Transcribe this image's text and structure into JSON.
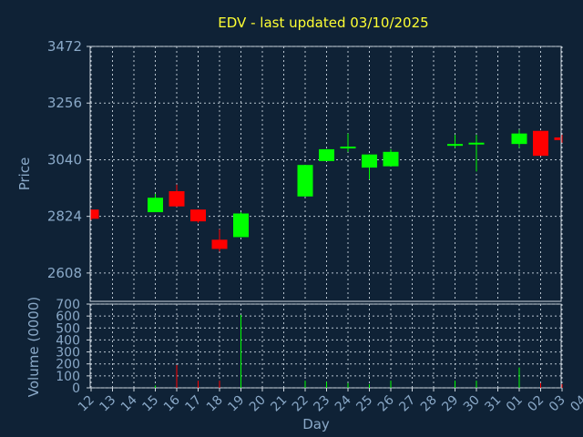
{
  "chart_data": {
    "type": "candlestick",
    "title": "EDV - last updated 03/10/2025",
    "ylabel": "Price",
    "volume_ylabel": "Volume (0000)",
    "xlabel": "Day",
    "ylim": [
      2500,
      3472
    ],
    "yticks": [
      2608,
      2824,
      3040,
      3256,
      3472
    ],
    "volume_ylim": [
      0,
      700
    ],
    "volume_yticks": [
      0,
      100,
      200,
      300,
      400,
      500,
      600,
      700
    ],
    "x_ticks": [
      "12",
      "13",
      "14",
      "15",
      "16",
      "17",
      "18",
      "19",
      "20",
      "21",
      "22",
      "23",
      "24",
      "25",
      "26",
      "27",
      "28",
      "29",
      "30",
      "31",
      "01",
      "02",
      "03",
      "04"
    ],
    "grid": true,
    "colors": {
      "up": "#00ff00",
      "down": "#ff0000",
      "background": "#0f2236",
      "title": "#ffff33",
      "axis_text": "#8aa9c8"
    },
    "candles": [
      {
        "day": "12",
        "open": 2850,
        "high": 2850,
        "low": 2810,
        "close": 2815,
        "volume": 0
      },
      {
        "day": "15",
        "open": 2840,
        "high": 2910,
        "low": 2840,
        "close": 2895,
        "volume": 20
      },
      {
        "day": "16",
        "open": 2920,
        "high": 2945,
        "low": 2860,
        "close": 2862,
        "volume": 190
      },
      {
        "day": "17",
        "open": 2850,
        "high": 2850,
        "low": 2800,
        "close": 2805,
        "volume": 60
      },
      {
        "day": "18",
        "open": 2735,
        "high": 2775,
        "low": 2690,
        "close": 2700,
        "volume": 60
      },
      {
        "day": "19",
        "open": 2745,
        "high": 2840,
        "low": 2745,
        "close": 2835,
        "volume": 610
      },
      {
        "day": "22",
        "open": 2900,
        "high": 3020,
        "low": 2900,
        "close": 3020,
        "volume": 60
      },
      {
        "day": "23",
        "open": 3035,
        "high": 3080,
        "low": 3035,
        "close": 3080,
        "volume": 50
      },
      {
        "day": "24",
        "open": 3085,
        "high": 3140,
        "low": 3070,
        "close": 3090,
        "volume": 40
      },
      {
        "day": "25",
        "open": 3010,
        "high": 3060,
        "low": 2965,
        "close": 3060,
        "volume": 30
      },
      {
        "day": "26",
        "open": 3015,
        "high": 3080,
        "low": 3015,
        "close": 3070,
        "volume": 60
      },
      {
        "day": "29",
        "open": 3095,
        "high": 3135,
        "low": 3085,
        "close": 3100,
        "volume": 60
      },
      {
        "day": "30",
        "open": 3100,
        "high": 3135,
        "low": 2995,
        "close": 3105,
        "volume": 60
      },
      {
        "day": "01",
        "open": 3100,
        "high": 3155,
        "low": 3085,
        "close": 3140,
        "volume": 170
      },
      {
        "day": "02",
        "open": 3150,
        "high": 3150,
        "low": 3055,
        "close": 3055,
        "volume": 40
      },
      {
        "day": "03",
        "open": 3125,
        "high": 3135,
        "low": 3105,
        "close": 3115,
        "volume": 30
      }
    ]
  }
}
